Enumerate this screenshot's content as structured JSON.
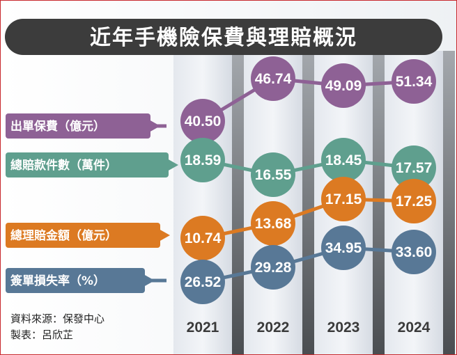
{
  "title": "近年手機險保費與理賠概況",
  "source": "資料來源：保發中心",
  "maker": "製表：呂欣芷",
  "colors": {
    "premium": "#8e6195",
    "claims_count": "#5f9f8e",
    "claims_amount": "#dc7a22",
    "loss_ratio": "#587896",
    "title_bar": "#3c3c3c"
  },
  "chart_data": {
    "type": "line",
    "title": "近年手機險保費與理賠概況",
    "categories": [
      "2021",
      "2022",
      "2023",
      "2024"
    ],
    "series": [
      {
        "key": "premium",
        "name": "出單保費（億元）",
        "values": [
          "40.50",
          "46.74",
          "49.09",
          "51.34"
        ]
      },
      {
        "key": "claims_count",
        "name": "總賠款件數（萬件）",
        "values": [
          "18.59",
          "16.55",
          "18.45",
          "17.57"
        ]
      },
      {
        "key": "claims_amount",
        "name": "總理賠金額（億元）",
        "values": [
          "10.74",
          "13.68",
          "17.15",
          "17.25"
        ]
      },
      {
        "key": "loss_ratio",
        "name": "簽單損失率（%）",
        "values": [
          "26.52",
          "29.28",
          "34.95",
          "33.60"
        ]
      }
    ]
  }
}
